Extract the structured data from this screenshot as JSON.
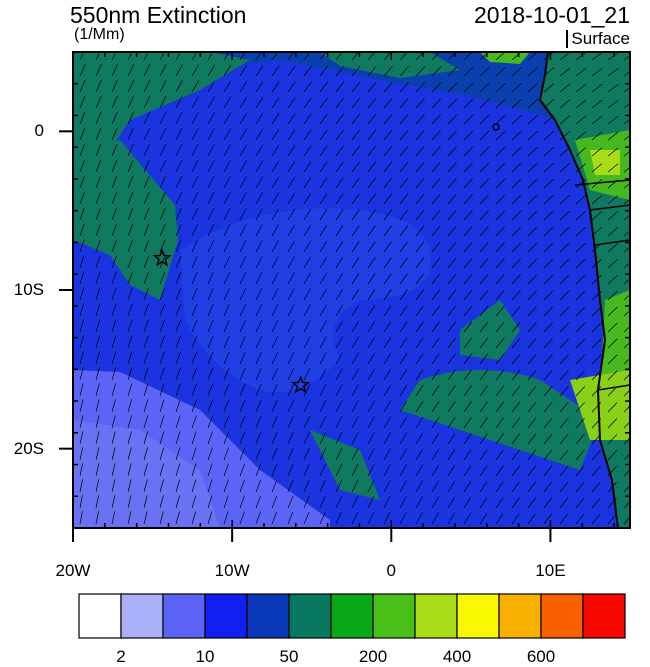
{
  "header": {
    "title": "550nm Extinction",
    "units": "(1/Mm)",
    "timestamp": "2018-10-01_21",
    "level": "Surface"
  },
  "axes": {
    "y_ticks": [
      {
        "label": "0",
        "value": 0
      },
      {
        "label": "10S",
        "value": -10
      },
      {
        "label": "20S",
        "value": -20
      }
    ],
    "x_ticks": [
      {
        "label": "20W",
        "value": -20
      },
      {
        "label": "10W",
        "value": -10
      },
      {
        "label": "0",
        "value": 0
      },
      {
        "label": "10E",
        "value": 10
      }
    ],
    "lon_range": [
      -20,
      15
    ],
    "lat_range": [
      -25,
      5
    ]
  },
  "markers": [
    {
      "name": "star-marker-ascension",
      "lon": -14.4,
      "lat": -8.0
    },
    {
      "name": "star-marker-st-helena",
      "lon": -5.7,
      "lat": -16.0
    }
  ],
  "colorbar": {
    "colors": [
      "#ffffff",
      "#aab0f8",
      "#5c64f8",
      "#1020f0",
      "#0838b8",
      "#087860",
      "#08a818",
      "#48c018",
      "#a8dc18",
      "#f8f800",
      "#f8b000",
      "#f86000",
      "#f80800"
    ],
    "labels": [
      {
        "text": "2",
        "boundary": 1
      },
      {
        "text": "10",
        "boundary": 3
      },
      {
        "text": "50",
        "boundary": 5
      },
      {
        "text": "200",
        "boundary": 7
      },
      {
        "text": "400",
        "boundary": 9
      },
      {
        "text": "600",
        "boundary": 11
      }
    ]
  },
  "legend_colors": {
    "ocean_main": "#1a35e0",
    "ocean_dark": "#0a3fae",
    "green_band": "#0f7a60",
    "light_blue": "#5c64f8",
    "land_green": "#46b820"
  }
}
